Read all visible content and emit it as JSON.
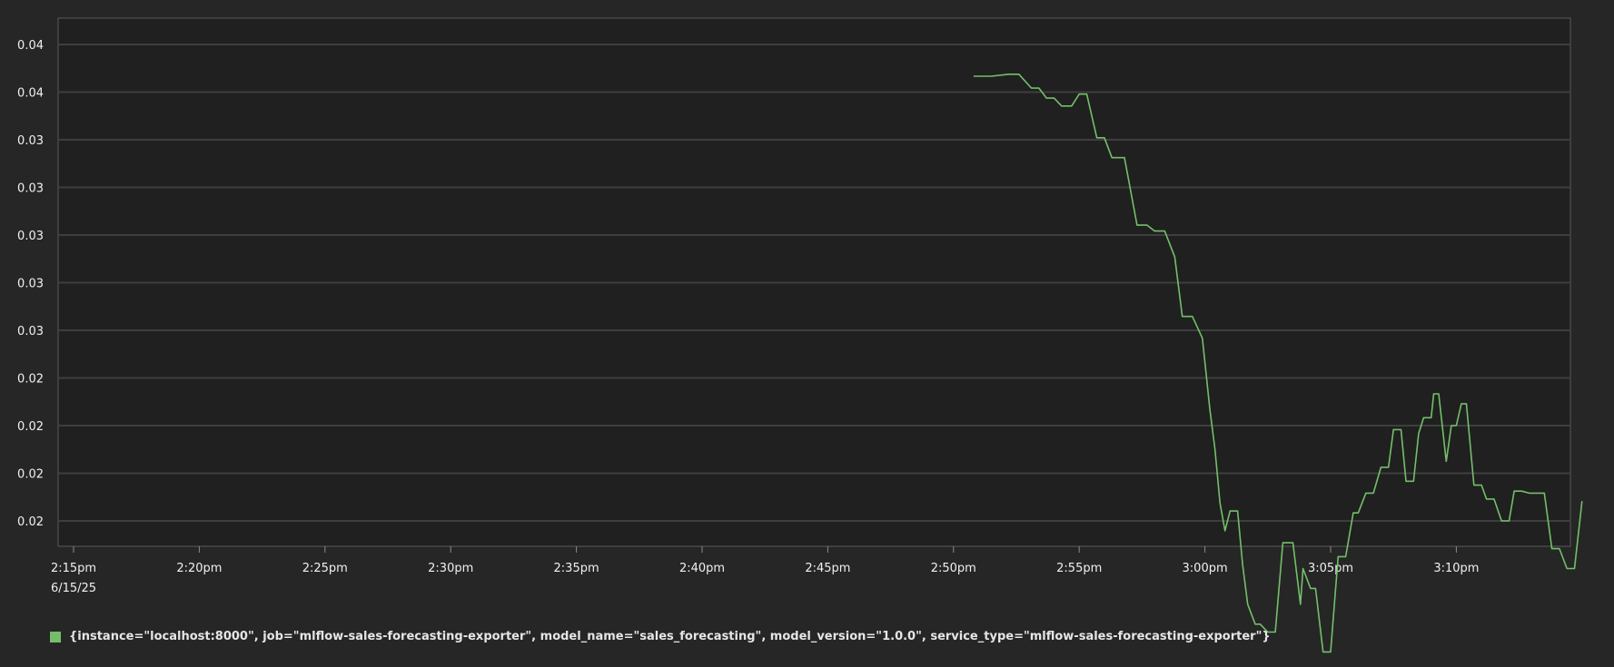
{
  "colors": {
    "background": "#262626",
    "plot_bg": "#202020",
    "grid": "#3e3e3e",
    "series": "#73bf69"
  },
  "chart_data": {
    "type": "line",
    "title": "",
    "xlabel": "",
    "ylabel": "",
    "x_ticks": [
      "2:15pm",
      "2:20pm",
      "2:25pm",
      "2:30pm",
      "2:35pm",
      "2:40pm",
      "2:45pm",
      "2:50pm",
      "2:55pm",
      "3:00pm",
      "3:05pm",
      "3:10pm"
    ],
    "x_date_label": "6/15/25",
    "y_ticks": [
      "0.04",
      "0.04",
      "0.03",
      "0.03",
      "0.03",
      "0.03",
      "0.03",
      "0.02",
      "0.02",
      "0.02",
      "0.02"
    ],
    "grid": true,
    "legend_position": "bottom-left",
    "series": [
      {
        "name": "{instance=\"localhost:8000\", job=\"mlflow-sales-forecasting-exporter\", model_name=\"sales_forecasting\", model_version=\"1.0.0\", service_type=\"mlflow-sales-forecasting-exporter\"}",
        "x_minutes": [
          35.8,
          36.5,
          37.2,
          37.6,
          38.1,
          38.4,
          38.7,
          39.0,
          39.3,
          39.7,
          40.0,
          40.3,
          40.7,
          41.0,
          41.3,
          41.5,
          41.8,
          42.3,
          42.7,
          43.0,
          43.4,
          43.8,
          44.1,
          44.5,
          44.9,
          45.2,
          45.4,
          45.6,
          45.8,
          46.0,
          46.3,
          46.5,
          46.7,
          47.0,
          47.2,
          47.5,
          47.8,
          48.1,
          48.5,
          48.8,
          48.9,
          49.2,
          49.4,
          49.7,
          50.0,
          50.3,
          50.6,
          50.9,
          51.1,
          51.4,
          51.7,
          52.0,
          52.3,
          52.5,
          52.8,
          53.0,
          53.3,
          53.5,
          53.7,
          54.0,
          54.1,
          54.3,
          54.6,
          54.8,
          55.0,
          55.2,
          55.4,
          55.7,
          56.0,
          56.2,
          56.5,
          56.8,
          57.1,
          57.3,
          57.6,
          57.9,
          58.2,
          58.5,
          58.8,
          59.1,
          59.4,
          59.7,
          60.0
        ],
        "values": [
          0.0424,
          0.0424,
          0.0425,
          0.0425,
          0.0418,
          0.0418,
          0.0413,
          0.0413,
          0.0409,
          0.0409,
          0.0415,
          0.0415,
          0.0393,
          0.0393,
          0.0383,
          0.0383,
          0.0383,
          0.0349,
          0.0349,
          0.0346,
          0.0346,
          0.0333,
          0.0303,
          0.0303,
          0.0292,
          0.0256,
          0.0236,
          0.0209,
          0.0195,
          0.0205,
          0.0205,
          0.0178,
          0.0158,
          0.0148,
          0.0148,
          0.0144,
          0.0144,
          0.0189,
          0.0189,
          0.0158,
          0.0176,
          0.0166,
          0.0166,
          0.0134,
          0.0134,
          0.0182,
          0.0182,
          0.0204,
          0.0204,
          0.0214,
          0.0214,
          0.0227,
          0.0227,
          0.0246,
          0.0246,
          0.022,
          0.022,
          0.0244,
          0.0252,
          0.0252,
          0.0264,
          0.0264,
          0.023,
          0.0248,
          0.0248,
          0.0259,
          0.0259,
          0.0218,
          0.0218,
          0.0211,
          0.0211,
          0.02,
          0.02,
          0.0215,
          0.0215,
          0.0214,
          0.0214,
          0.0214,
          0.0186,
          0.0186,
          0.0176,
          0.0176,
          0.021
        ]
      }
    ]
  }
}
